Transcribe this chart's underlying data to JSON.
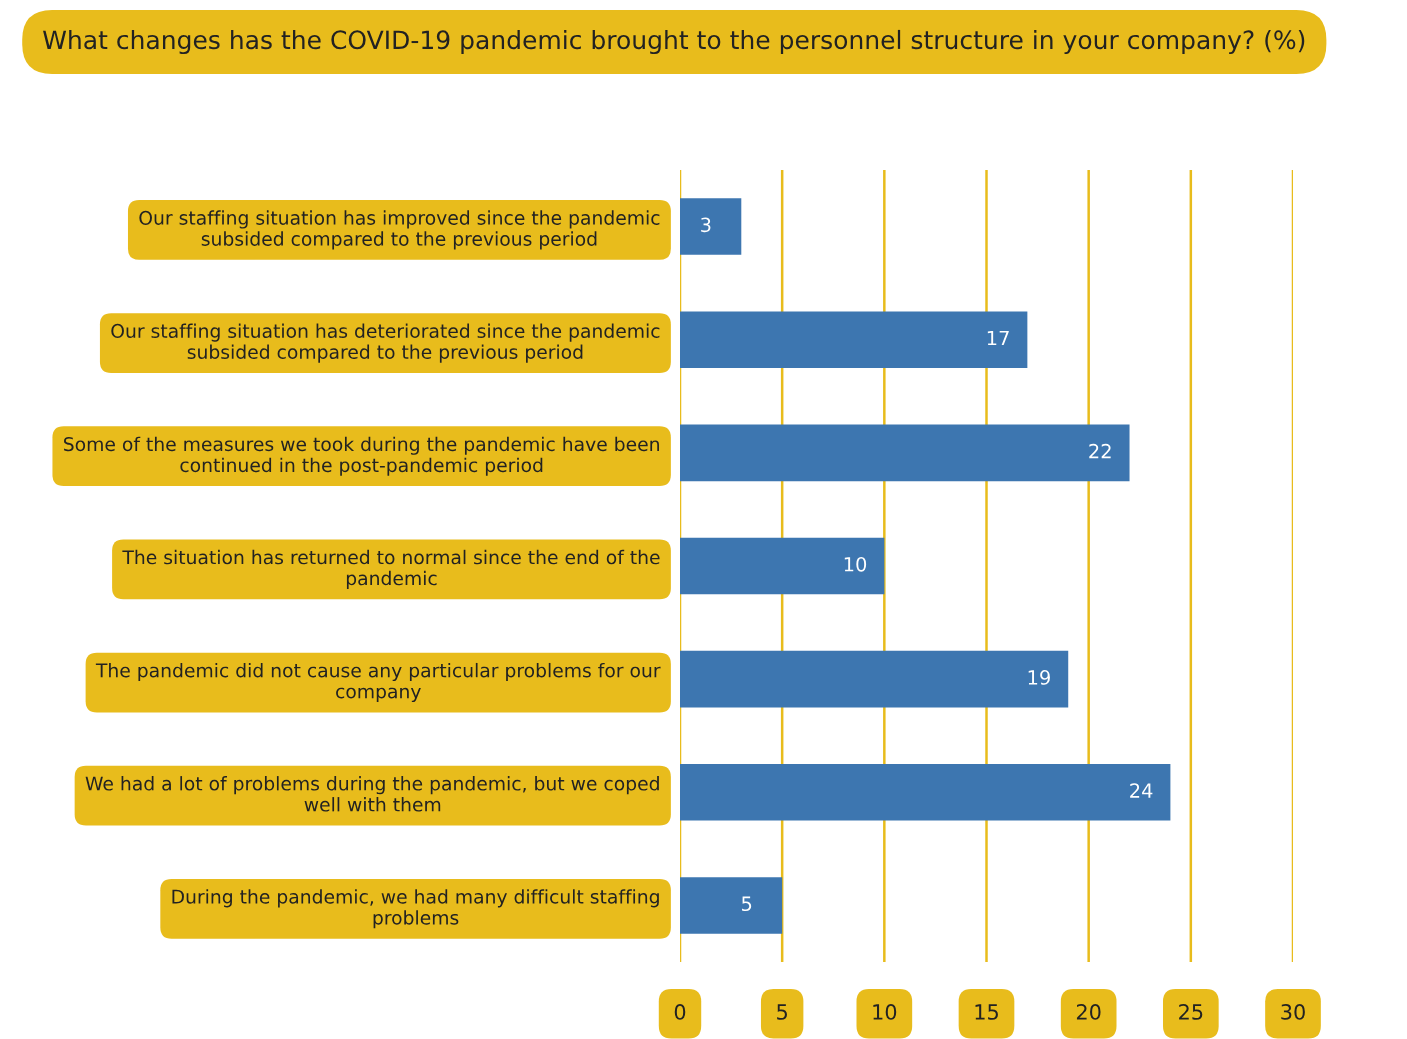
{
  "chart_data": {
    "type": "bar",
    "orientation": "horizontal",
    "title": "What changes has the COVID-19 pandemic brought to the personnel structure in your company? (%)",
    "categories": [
      "Our staffing situation has improved since the pandemic subsided compared to the previous period",
      "Our staffing situation has deteriorated since the pandemic subsided compared to the previous period",
      "Some of the measures we took during the pandemic have been continued in the post-pandemic period",
      "The situation has returned to normal since the end of the pandemic",
      "The pandemic did not cause any particular problems for our company",
      "We had a lot of problems during the pandemic, but we coped well with them",
      "During the pandemic, we had many difficult staffing problems"
    ],
    "values": [
      3,
      17,
      22,
      10,
      19,
      24,
      5
    ],
    "color": "#3d76b0",
    "xlim": [
      0,
      30
    ],
    "xticks": [
      0,
      5,
      10,
      15,
      20,
      25,
      30
    ],
    "grid": "x",
    "data_labels": true
  }
}
